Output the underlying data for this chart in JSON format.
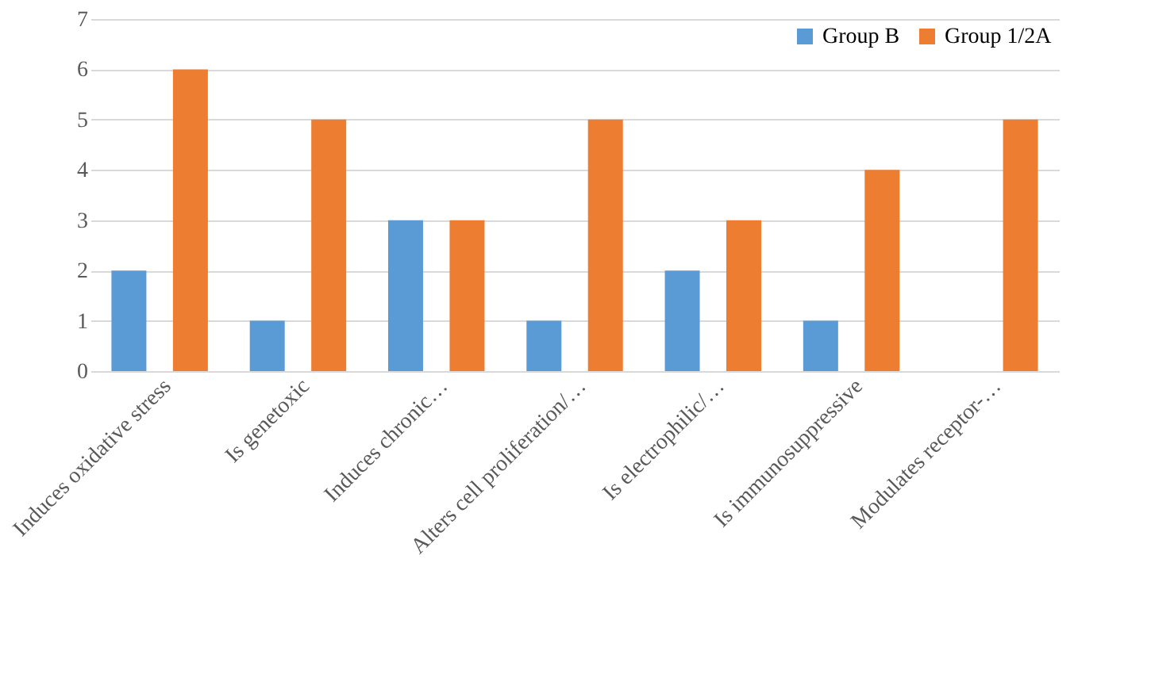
{
  "chart_data": {
    "type": "bar",
    "categories": [
      "Induces oxidative stress",
      "Is genetoxic",
      "Induces chronic…",
      "Alters cell proliferation/…",
      "Is electrophilic/…",
      "Is immunosuppressive",
      "Modulates receptor-…"
    ],
    "series": [
      {
        "name": "Group B",
        "color": "#5b9bd5",
        "values": [
          2,
          1,
          3,
          1,
          2,
          1,
          null
        ]
      },
      {
        "name": "Group 1/2A",
        "color": "#ed7d31",
        "values": [
          6,
          5,
          3,
          5,
          3,
          4,
          5
        ]
      }
    ],
    "ylim": [
      0,
      7
    ],
    "yticks": [
      0,
      1,
      2,
      3,
      4,
      5,
      6,
      7
    ],
    "grid": "y",
    "legend": "top right"
  }
}
